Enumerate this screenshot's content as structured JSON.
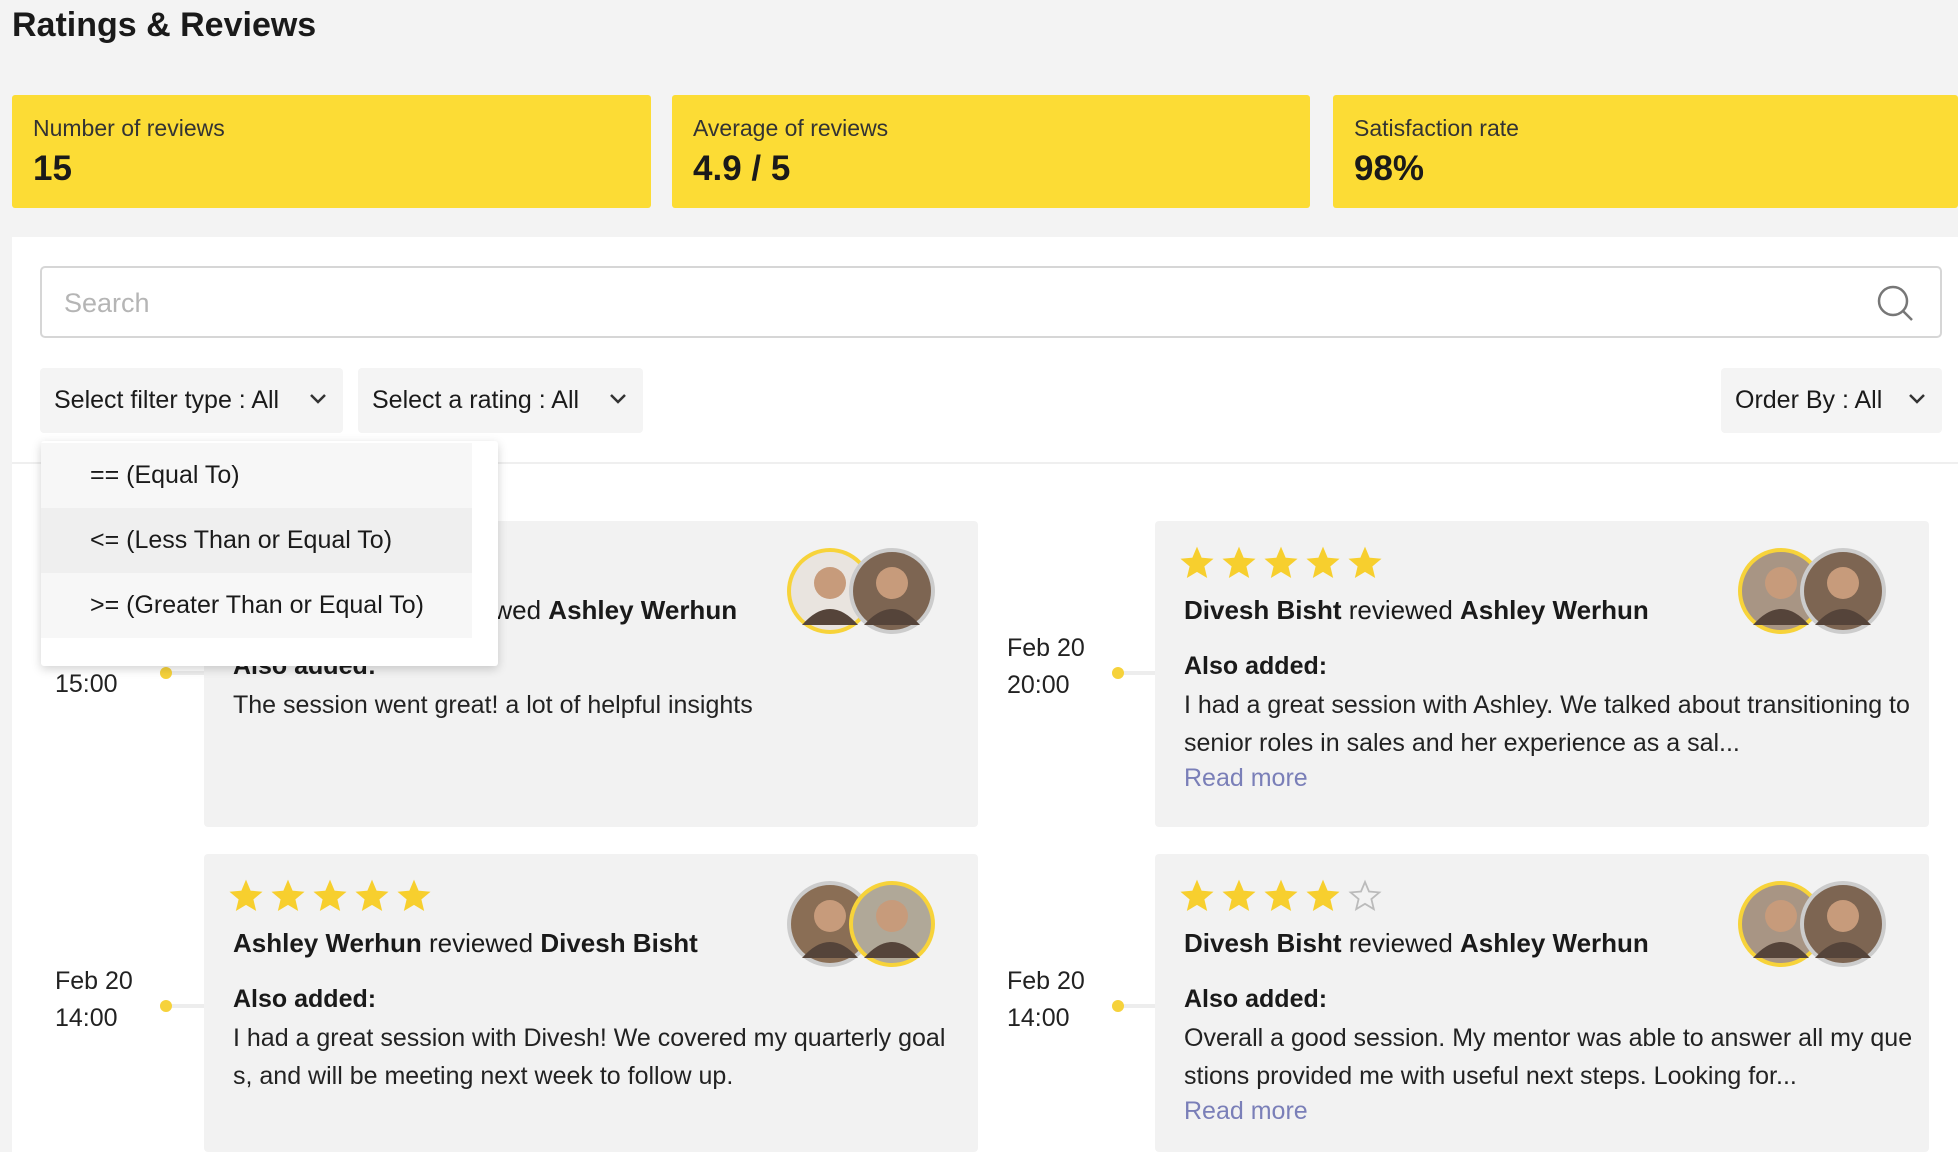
{
  "header": {
    "title": "Ratings & Reviews"
  },
  "stats": [
    {
      "label": "Number of reviews",
      "value": "15"
    },
    {
      "label": "Average of reviews",
      "value": "4.9 / 5"
    },
    {
      "label": "Satisfaction rate",
      "value": "98%"
    }
  ],
  "search": {
    "placeholder": "Search"
  },
  "filters": {
    "type": "Select filter type : All",
    "rating": "Select a rating : All",
    "order": "Order By : All"
  },
  "dropdown": {
    "options": [
      "== (Equal To)",
      "<= (Less Than or Equal To)",
      ">= (Greater Than or Equal To)"
    ]
  },
  "max_rating": 5,
  "reviews": [
    {
      "time": "15:00",
      "verb": "reviewed",
      "reviewee": "Ashley Werhun",
      "also": "Also added:",
      "text": "The session went great! a lot of helpful insights"
    },
    {
      "date": "Feb 20",
      "time": "20:00",
      "rating": 5,
      "reviewer": "Divesh Bisht",
      "verb": "reviewed",
      "reviewee": "Ashley Werhun",
      "also": "Also added:",
      "text": "I had a great session with Ashley. We talked about transitioning to senior roles in sales and her experience as a sal...",
      "more": "Read more"
    },
    {
      "date": "Feb 20",
      "time": "14:00",
      "rating": 5,
      "reviewer": "Ashley Werhun",
      "verb": "reviewed",
      "reviewee": "Divesh Bisht",
      "also": "Also added:",
      "text": "I had a great session with Divesh! We covered my quarterly goals, and will be meeting next week to follow up."
    },
    {
      "date": "Feb 20",
      "time": "14:00",
      "rating": 4,
      "reviewer": "Divesh Bisht",
      "verb": "reviewed",
      "reviewee": "Ashley Werhun",
      "also": "Also added:",
      "text": "Overall a good session. My mentor was able to answer all my questions provided me with useful next steps. Looking for...",
      "more": "Read more"
    }
  ]
}
